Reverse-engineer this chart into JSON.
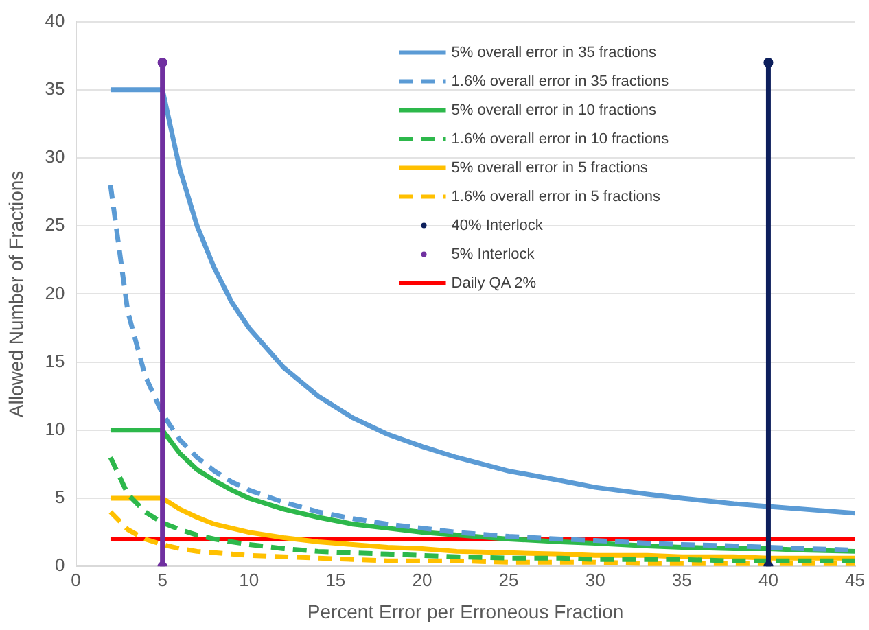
{
  "chart_data": {
    "type": "line",
    "xlabel": "Percent Error per Erroneous Fraction",
    "ylabel": "Allowed Number of Fractions",
    "xlim": [
      0,
      45
    ],
    "xticks": [
      0,
      5,
      10,
      15,
      20,
      25,
      30,
      35,
      40,
      45
    ],
    "ylim": [
      0,
      40
    ],
    "yticks": [
      0,
      5,
      10,
      15,
      20,
      25,
      30,
      35,
      40
    ],
    "grid": "y",
    "legend": "top right",
    "x": [
      2,
      3,
      4,
      5,
      6,
      7,
      8,
      9,
      10,
      12,
      14,
      16,
      18,
      20,
      22,
      25,
      28,
      30,
      33,
      35,
      38,
      40,
      42,
      45
    ],
    "series": [
      {
        "name": "5% overall error in 35 fractions",
        "color": "#5b9bd5",
        "line_style": "solid",
        "marker": "none",
        "values": [
          35,
          35,
          35,
          35,
          29.2,
          25,
          21.9,
          19.4,
          17.5,
          14.6,
          12.5,
          10.9,
          9.7,
          8.8,
          8,
          7,
          6.3,
          5.8,
          5.3,
          5,
          4.6,
          4.4,
          4.2,
          3.9
        ]
      },
      {
        "name": "1.6% overall error in 35 fractions",
        "color": "#5b9bd5",
        "line_style": "dashed",
        "marker": "none",
        "values": [
          28,
          18.7,
          14,
          11.2,
          9.3,
          8,
          7,
          6.2,
          5.6,
          4.7,
          4,
          3.5,
          3.1,
          2.8,
          2.5,
          2.2,
          2,
          1.9,
          1.7,
          1.6,
          1.5,
          1.4,
          1.3,
          1.2
        ]
      },
      {
        "name": "5% overall error in 10 fractions",
        "color": "#2db84b",
        "line_style": "solid",
        "marker": "none",
        "values": [
          10,
          10,
          10,
          10,
          8.3,
          7.1,
          6.3,
          5.6,
          5,
          4.2,
          3.6,
          3.1,
          2.8,
          2.5,
          2.3,
          2,
          1.8,
          1.7,
          1.5,
          1.4,
          1.3,
          1.3,
          1.2,
          1.1
        ]
      },
      {
        "name": "1.6% overall error in 10 fractions",
        "color": "#2db84b",
        "line_style": "dashed",
        "marker": "none",
        "values": [
          8,
          5.3,
          4,
          3.2,
          2.7,
          2.3,
          2,
          1.8,
          1.6,
          1.3,
          1.1,
          1,
          0.9,
          0.8,
          0.7,
          0.6,
          0.6,
          0.5,
          0.5,
          0.5,
          0.4,
          0.4,
          0.4,
          0.4
        ]
      },
      {
        "name": "5% overall error in 5 fractions",
        "color": "#ffc000",
        "line_style": "solid",
        "marker": "none",
        "values": [
          5,
          5,
          5,
          5,
          4.2,
          3.6,
          3.1,
          2.8,
          2.5,
          2.1,
          1.8,
          1.6,
          1.4,
          1.3,
          1.1,
          1,
          0.9,
          0.8,
          0.8,
          0.7,
          0.7,
          0.6,
          0.6,
          0.6
        ]
      },
      {
        "name": "1.6% overall error in 5 fractions",
        "color": "#ffc000",
        "line_style": "dashed",
        "marker": "none",
        "values": [
          4,
          2.7,
          2,
          1.6,
          1.3,
          1.1,
          1,
          0.9,
          0.8,
          0.7,
          0.6,
          0.5,
          0.4,
          0.4,
          0.4,
          0.3,
          0.3,
          0.3,
          0.2,
          0.2,
          0.2,
          0.2,
          0.2,
          0.2
        ]
      },
      {
        "name": "40% Interlock",
        "color": "#0d1f5c",
        "line_style": "solid",
        "marker": "circle",
        "x": [
          40,
          40
        ],
        "values": [
          0,
          37
        ]
      },
      {
        "name": "5% Interlock",
        "color": "#7030a0",
        "line_style": "solid",
        "marker": "circle",
        "x": [
          5,
          5
        ],
        "values": [
          0,
          37
        ]
      },
      {
        "name": "Daily QA 2%",
        "color": "#ff0000",
        "line_style": "solid",
        "marker": "none",
        "x": [
          2,
          45
        ],
        "values": [
          2,
          2
        ]
      }
    ]
  }
}
